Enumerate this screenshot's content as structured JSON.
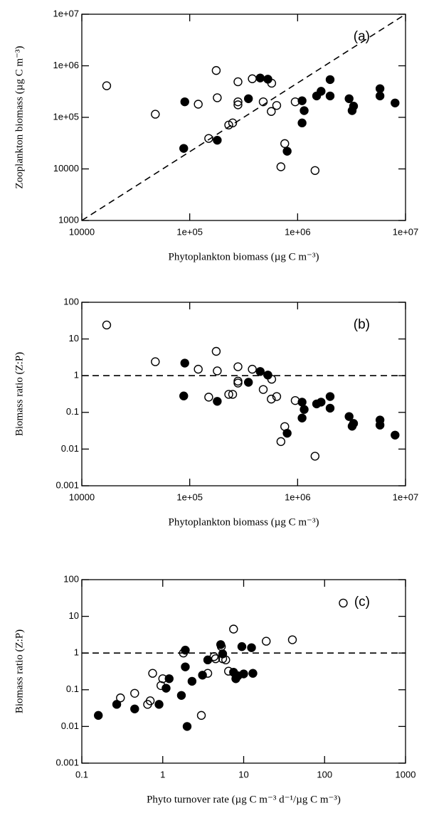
{
  "chart_data": [
    {
      "type": "scatter",
      "annotation": "(a)",
      "x_label": "Phytoplankton biomass (µg C m⁻³)",
      "y_label": "Zooplankton biomass (µg C m⁻³)",
      "xscale": "log",
      "yscale": "log",
      "xlim": [
        10000,
        10000000
      ],
      "ylim": [
        1000,
        10000000
      ],
      "xticks": [
        10000,
        {
          "value": 100000,
          "label": "1e+05"
        },
        {
          "value": 1000000,
          "label": "1e+06"
        },
        {
          "value": 10000000,
          "label": "1e+07"
        }
      ],
      "yticks": [
        1000,
        10000,
        {
          "value": 100000,
          "label": "1e+05"
        },
        {
          "value": 1000000,
          "label": "1e+06"
        },
        {
          "value": 10000000,
          "label": "1e+07"
        }
      ],
      "reference_line": {
        "x": [
          10000,
          10000000
        ],
        "y": [
          1000,
          10000000
        ]
      },
      "series": [
        {
          "color": "#000000",
          "fill": "none",
          "x": [
            17000,
            48000,
            120000,
            176000,
            180000,
            150000,
            230000,
            250000,
            280000,
            280000,
            280000,
            380000,
            480000,
            575000,
            570000,
            640000,
            950000,
            700000,
            760000,
            1450000
          ],
          "values": [
            410000,
            115000,
            180000,
            810000,
            240000,
            39000,
            71000,
            78000,
            200000,
            175000,
            490000,
            560000,
            200000,
            460000,
            130000,
            170000,
            200000,
            11000,
            31000,
            9300
          ]
        },
        {
          "color": "#000000",
          "fill": "#000000",
          "x": [
            90000,
            88000,
            180000,
            350000,
            450000,
            530000,
            800000,
            1100000,
            1150000,
            1100000,
            1500000,
            1650000,
            2000000,
            2000000,
            3000000,
            3200000,
            3300000,
            5800000,
            5800000,
            8000000
          ],
          "values": [
            200000,
            25000,
            36000,
            230000,
            580000,
            550000,
            22000,
            78000,
            135000,
            210000,
            260000,
            320000,
            540000,
            260000,
            230000,
            135000,
            165000,
            360000,
            260000,
            190000
          ]
        }
      ]
    },
    {
      "type": "scatter",
      "annotation": "(b)",
      "x_label": "Phytoplankton biomass (µg C m⁻³)",
      "y_label": "Biomass  ratio (Z:P)",
      "xscale": "log",
      "yscale": "log",
      "xlim": [
        10000,
        10000000
      ],
      "ylim": [
        0.001,
        100
      ],
      "xticks": [
        10000,
        {
          "value": 100000,
          "label": "1e+05"
        },
        {
          "value": 1000000,
          "label": "1e+06"
        },
        {
          "value": 10000000,
          "label": "1e+07"
        }
      ],
      "yticks": [
        0.001,
        0.01,
        0.1,
        1,
        10,
        100
      ],
      "hline": 1,
      "series": [
        {
          "color": "#000000",
          "fill": "none",
          "x": [
            17000,
            48000,
            120000,
            176000,
            180000,
            150000,
            230000,
            250000,
            280000,
            280000,
            280000,
            380000,
            480000,
            575000,
            570000,
            640000,
            950000,
            700000,
            760000,
            1450000
          ],
          "values": [
            24,
            2.4,
            1.5,
            4.6,
            1.35,
            0.26,
            0.31,
            0.31,
            0.71,
            0.63,
            1.75,
            1.5,
            0.42,
            0.8,
            0.23,
            0.27,
            0.21,
            0.016,
            0.041,
            0.0064
          ]
        },
        {
          "color": "#000000",
          "fill": "#000000",
          "x": [
            90000,
            88000,
            180000,
            350000,
            450000,
            530000,
            800000,
            1100000,
            1150000,
            1100000,
            1500000,
            1650000,
            2000000,
            2000000,
            3000000,
            3200000,
            3300000,
            5800000,
            5800000,
            8000000
          ],
          "values": [
            2.2,
            0.28,
            0.2,
            0.66,
            1.3,
            1.04,
            0.027,
            0.07,
            0.12,
            0.19,
            0.17,
            0.19,
            0.27,
            0.13,
            0.077,
            0.042,
            0.05,
            0.062,
            0.045,
            0.024
          ]
        }
      ]
    },
    {
      "type": "scatter",
      "annotation": "(c)",
      "x_label": "Phyto turnover rate (µg C m⁻³ d⁻¹/µg C m⁻³)",
      "y_label": "Biomass  ratio (Z:P)",
      "xscale": "log",
      "yscale": "log",
      "xlim": [
        0.1,
        1000
      ],
      "ylim": [
        0.001,
        100
      ],
      "xticks": [
        0.1,
        1,
        10,
        100,
        1000
      ],
      "yticks": [
        0.001,
        0.01,
        0.1,
        1,
        10,
        100
      ],
      "hline": 1,
      "series": [
        {
          "color": "#000000",
          "fill": "none",
          "x": [
            0.3,
            0.45,
            0.65,
            0.7,
            0.75,
            0.95,
            1.0,
            1.8,
            3.0,
            3.6,
            4.5,
            5.3,
            5.5,
            6,
            6.5,
            7.5,
            19,
            40,
            170,
            4.3
          ],
          "values": [
            0.06,
            0.08,
            0.04,
            0.05,
            0.28,
            0.13,
            0.2,
            1.0,
            0.02,
            0.28,
            0.7,
            1.5,
            0.7,
            0.65,
            0.32,
            4.5,
            2.1,
            2.3,
            23,
            0.8
          ]
        },
        {
          "color": "#000000",
          "fill": "#000000",
          "x": [
            0.16,
            0.27,
            0.45,
            0.9,
            1.1,
            1.2,
            1.7,
            1.9,
            1.9,
            2.3,
            3.1,
            3.6,
            5.2,
            2.0,
            5.5,
            7.5,
            8,
            8.5,
            9.5,
            10,
            12.5,
            13
          ],
          "values": [
            0.02,
            0.04,
            0.03,
            0.04,
            0.11,
            0.2,
            0.07,
            1.2,
            0.42,
            0.17,
            0.25,
            0.65,
            1.7,
            0.01,
            0.95,
            0.3,
            0.2,
            0.24,
            1.5,
            0.27,
            1.4,
            0.28
          ]
        }
      ]
    }
  ]
}
